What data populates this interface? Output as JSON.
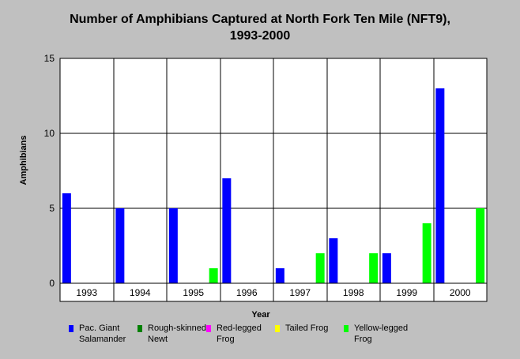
{
  "chart_data": {
    "type": "bar",
    "title_line1": "Number of Amphibians Captured at North Fork Ten Mile (NFT9),",
    "title_line2": "1993-2000",
    "xlabel": "Year",
    "ylabel": "Amphibians",
    "ylim": [
      0,
      15
    ],
    "yticks": [
      "0",
      "5",
      "10",
      "15"
    ],
    "grid": true,
    "legend_position": "bottom",
    "categories": [
      "1993",
      "1994",
      "1995",
      "1996",
      "1997",
      "1998",
      "1999",
      "2000"
    ],
    "series": [
      {
        "name": "Pac. Giant Salamander",
        "color": "#0000ff",
        "values": [
          6,
          5,
          5,
          7,
          1,
          3,
          2,
          13
        ]
      },
      {
        "name": "Rough-skinned Newt",
        "color": "#008000",
        "values": [
          0,
          0,
          0,
          0,
          0,
          0,
          0,
          0
        ]
      },
      {
        "name": "Red-legged Frog",
        "color": "#ff00ff",
        "values": [
          0,
          0,
          0,
          0,
          0,
          0,
          0,
          0
        ]
      },
      {
        "name": "Tailed Frog",
        "color": "#ffff00",
        "values": [
          0,
          0,
          0,
          0,
          0,
          0,
          0,
          0
        ]
      },
      {
        "name": "Yellow-legged Frog",
        "color": "#00ff00",
        "values": [
          0,
          0,
          1,
          0,
          2,
          2,
          4,
          5
        ]
      }
    ]
  },
  "legend": [
    {
      "line1": "Pac. Giant",
      "line2": "Salamander",
      "color": "#0000ff"
    },
    {
      "line1": "Rough-skinned",
      "line2": "Newt",
      "color": "#008000"
    },
    {
      "line1": "Red-legged",
      "line2": "Frog",
      "color": "#ff00ff"
    },
    {
      "line1": "Tailed Frog",
      "line2": "",
      "color": "#ffff00"
    },
    {
      "line1": "Yellow-legged",
      "line2": "Frog",
      "color": "#00ff00"
    }
  ]
}
